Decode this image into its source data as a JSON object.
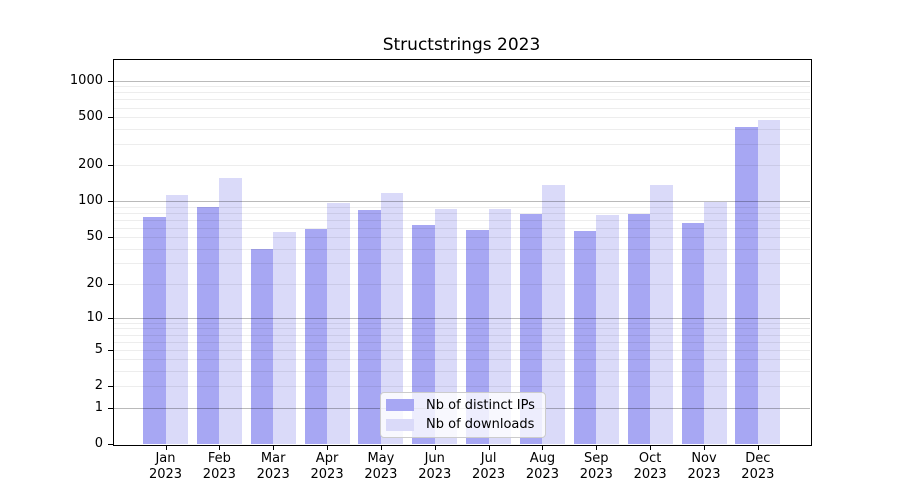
{
  "title": "Structstrings 2023",
  "chart_data": {
    "type": "bar",
    "title": "Structstrings 2023",
    "categories": [
      "Jan 2023",
      "Feb 2023",
      "Mar 2023",
      "Apr 2023",
      "May 2023",
      "Jun 2023",
      "Jul 2023",
      "Aug 2023",
      "Sep 2023",
      "Oct 2023",
      "Nov 2023",
      "Dec 2023"
    ],
    "x_tick_months": [
      "Jan",
      "Feb",
      "Mar",
      "Apr",
      "May",
      "Jun",
      "Jul",
      "Aug",
      "Sep",
      "Oct",
      "Nov",
      "Dec"
    ],
    "x_tick_year": "2023",
    "series": [
      {
        "name": "Nb of distinct IPs",
        "color": "#a7a7f3",
        "values": [
          74,
          90,
          40,
          59,
          85,
          63,
          58,
          78,
          56,
          78,
          66,
          415
        ]
      },
      {
        "name": "Nb of downloads",
        "color": "#dadaf9",
        "values": [
          112,
          156,
          55,
          96,
          118,
          86,
          87,
          136,
          77,
          136,
          99,
          470
        ]
      }
    ],
    "yscale": "log1p",
    "y_ticks": [
      0,
      1,
      2,
      5,
      10,
      20,
      50,
      100,
      200,
      500,
      1000
    ],
    "ylim": [
      0,
      1425
    ],
    "grid": true,
    "legend": {
      "position": "lower center",
      "labels": [
        "Nb of distinct IPs",
        "Nb of downloads"
      ]
    }
  }
}
